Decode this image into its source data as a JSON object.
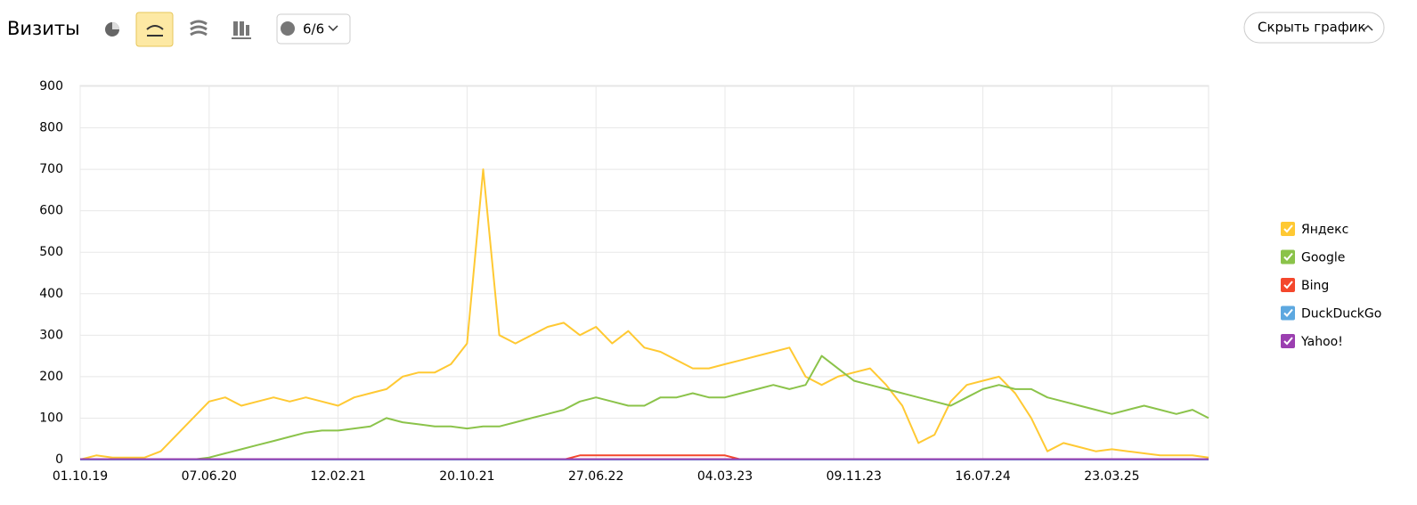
{
  "header": {
    "title": "Визиты",
    "annotations_count": "6/6",
    "hide_button": "Скрыть график"
  },
  "chart_data": {
    "type": "line",
    "categories": [
      "01.10.19",
      null,
      null,
      null,
      null,
      null,
      null,
      null,
      "07.06.20",
      null,
      null,
      null,
      null,
      null,
      null,
      null,
      "12.02.21",
      null,
      null,
      null,
      null,
      null,
      null,
      null,
      "20.10.21",
      null,
      null,
      null,
      null,
      null,
      null,
      null,
      "27.06.22",
      null,
      null,
      null,
      null,
      null,
      null,
      null,
      "04.03.23",
      null,
      null,
      null,
      null,
      null,
      null,
      null,
      "09.11.23",
      null,
      null,
      null,
      null,
      null,
      null,
      null,
      "16.07.24",
      null,
      null,
      null,
      null,
      null,
      null,
      null,
      "23.03.25",
      null,
      null,
      null,
      null,
      null,
      null
    ],
    "series": [
      {
        "name": "Яндекс",
        "color": "#ffc933",
        "values": [
          0,
          10,
          5,
          5,
          5,
          20,
          60,
          100,
          140,
          150,
          130,
          140,
          150,
          140,
          150,
          140,
          130,
          150,
          160,
          170,
          200,
          210,
          210,
          230,
          280,
          700,
          300,
          280,
          300,
          320,
          330,
          300,
          320,
          280,
          310,
          270,
          260,
          240,
          220,
          220,
          230,
          240,
          250,
          260,
          270,
          200,
          180,
          200,
          210,
          220,
          180,
          130,
          40,
          60,
          140,
          180,
          190,
          200,
          160,
          100,
          20,
          40,
          30,
          20,
          25,
          20,
          15,
          10,
          10,
          10,
          5
        ]
      },
      {
        "name": "Google",
        "color": "#8bc34a",
        "values": [
          0,
          0,
          0,
          0,
          0,
          0,
          0,
          0,
          5,
          15,
          25,
          35,
          45,
          55,
          65,
          70,
          70,
          75,
          80,
          100,
          90,
          85,
          80,
          80,
          75,
          80,
          80,
          90,
          100,
          110,
          120,
          140,
          150,
          140,
          130,
          130,
          150,
          150,
          160,
          150,
          150,
          160,
          170,
          180,
          170,
          180,
          250,
          220,
          190,
          180,
          170,
          160,
          150,
          140,
          130,
          150,
          170,
          180,
          170,
          170,
          150,
          140,
          130,
          120,
          110,
          120,
          130,
          120,
          110,
          120,
          100
        ]
      },
      {
        "name": "Bing",
        "color": "#f4472c",
        "values": [
          0,
          0,
          0,
          0,
          0,
          0,
          0,
          0,
          0,
          0,
          0,
          0,
          0,
          0,
          0,
          0,
          0,
          0,
          0,
          0,
          0,
          0,
          0,
          0,
          0,
          0,
          0,
          0,
          0,
          0,
          0,
          10,
          10,
          10,
          10,
          10,
          10,
          10,
          10,
          10,
          10,
          0,
          0,
          0,
          0,
          0,
          0,
          0,
          0,
          0,
          0,
          0,
          0,
          0,
          0,
          0,
          0,
          0,
          0,
          0,
          0,
          0,
          0,
          0,
          0,
          0,
          0,
          0,
          0,
          0,
          0
        ]
      },
      {
        "name": "DuckDuckGo",
        "color": "#5da8e0",
        "values": [
          0,
          0,
          0,
          0,
          0,
          0,
          0,
          0,
          0,
          0,
          0,
          0,
          0,
          0,
          0,
          0,
          0,
          0,
          0,
          0,
          0,
          0,
          0,
          0,
          0,
          0,
          0,
          0,
          0,
          0,
          0,
          0,
          0,
          0,
          0,
          0,
          0,
          0,
          0,
          0,
          0,
          0,
          0,
          0,
          0,
          0,
          0,
          0,
          0,
          0,
          0,
          0,
          0,
          0,
          0,
          0,
          0,
          0,
          0,
          0,
          0,
          0,
          0,
          0,
          0,
          0,
          0,
          0,
          0,
          0,
          0
        ]
      },
      {
        "name": "Yahoo!",
        "color": "#9b3fb0",
        "values": [
          1,
          1,
          1,
          1,
          1,
          1,
          1,
          1,
          1,
          1,
          1,
          1,
          1,
          1,
          1,
          1,
          1,
          1,
          1,
          1,
          1,
          1,
          1,
          1,
          1,
          1,
          1,
          1,
          1,
          1,
          1,
          1,
          1,
          1,
          1,
          1,
          1,
          1,
          1,
          1,
          1,
          1,
          1,
          1,
          1,
          1,
          1,
          1,
          1,
          1,
          1,
          1,
          1,
          1,
          1,
          1,
          1,
          1,
          1,
          1,
          1,
          1,
          1,
          1,
          1,
          1,
          1,
          1,
          1,
          1,
          1
        ]
      }
    ],
    "ylim": [
      0,
      900
    ],
    "yticks": [
      0,
      100,
      200,
      300,
      400,
      500,
      600,
      700,
      800,
      900
    ],
    "grid": true
  }
}
